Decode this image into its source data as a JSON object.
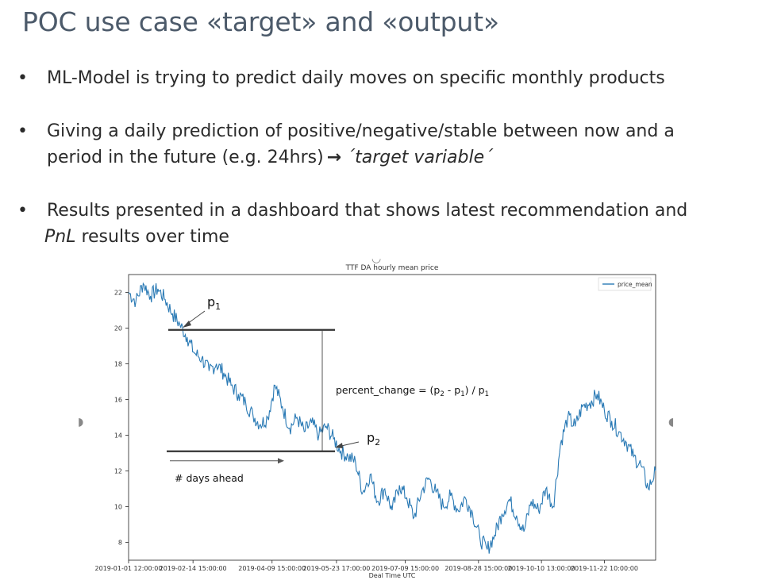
{
  "slide": {
    "title": "POC use case «target» and «output»",
    "bullets": [
      {
        "line1": "ML-Model is trying to predict daily moves on specific monthly products"
      },
      {
        "line1": "Giving a daily prediction of positive/negative/stable between now and a",
        "line2_pre": "period in the future (e.g. 24hrs)",
        "line2_arrow": "→",
        "line2_em": "´target variable´"
      },
      {
        "line1": "Results presented in a dashboard that shows latest recommendation and",
        "line2_em": "PnL",
        "line2_post": " results over time"
      }
    ],
    "bullet_glyph": "•"
  },
  "chart_data": {
    "type": "line",
    "title": "TTF DA hourly mean price",
    "xlabel": "Deal Time UTC",
    "ylabel": "",
    "ylim": [
      7,
      23
    ],
    "yticks": [
      8,
      10,
      12,
      14,
      16,
      18,
      20,
      22
    ],
    "xticks": [
      "2019-01-01 12:00:00",
      "2019-02-14 15:00:00",
      "2019-04-09 15:00:00",
      "2019-05-23 17:00:00",
      "2019-07-09 15:00:00",
      "2019-08-28 15:00:00",
      "2019-10-10 13:00:00",
      "2019-11-22 10:00:00"
    ],
    "legend": {
      "position": "top-right",
      "entries": [
        "price_mean"
      ]
    },
    "line_color": "#2a7ab5",
    "series": [
      {
        "name": "price_mean",
        "x_day": [
          0,
          5,
          10,
          15,
          20,
          25,
          30,
          35,
          40,
          45,
          50,
          55,
          60,
          65,
          70,
          75,
          80,
          85,
          90,
          95,
          100,
          105,
          110,
          115,
          120,
          125,
          130,
          135,
          140,
          145,
          150,
          155,
          160,
          165,
          170,
          175,
          180,
          185,
          190,
          195,
          200,
          205,
          210,
          215,
          220,
          225,
          230,
          235,
          240,
          245,
          250,
          255,
          260,
          265,
          270,
          275,
          280,
          285,
          290,
          295,
          300,
          305,
          310,
          315,
          320,
          325,
          330,
          335,
          340,
          345,
          350,
          355,
          360
        ],
        "values": [
          22.0,
          21.5,
          22.5,
          21.8,
          22.2,
          21.6,
          20.8,
          20.2,
          19.5,
          18.6,
          18.3,
          17.6,
          18.0,
          17.5,
          16.8,
          16.3,
          15.8,
          15.1,
          14.6,
          15.0,
          16.8,
          15.6,
          14.4,
          15.0,
          14.2,
          14.7,
          14.0,
          14.5,
          13.8,
          13.1,
          12.8,
          12.5,
          10.8,
          11.8,
          10.3,
          11.0,
          9.8,
          11.2,
          10.5,
          9.4,
          10.8,
          11.6,
          10.8,
          10.0,
          10.6,
          9.8,
          10.5,
          9.6,
          8.2,
          7.6,
          8.4,
          9.6,
          10.4,
          9.5,
          8.6,
          10.3,
          9.8,
          11.0,
          10.0,
          13.5,
          15.0,
          14.5,
          15.6,
          15.8,
          16.3,
          15.4,
          14.8,
          14.2,
          13.6,
          12.8,
          12.3,
          11.0,
          12.0
        ]
      }
    ],
    "annotations": {
      "p1": "p",
      "p1_sub": "1",
      "p2": "p",
      "p2_sub": "2",
      "formula_pre": "percent_change = (p",
      "formula_sub2": "2",
      "formula_mid": " - p",
      "formula_sub1a": "1",
      "formula_post": ") / p",
      "formula_sub1b": "1",
      "days_ahead": "# days ahead",
      "p1_value": 19.9,
      "p2_value": 13.1
    }
  }
}
